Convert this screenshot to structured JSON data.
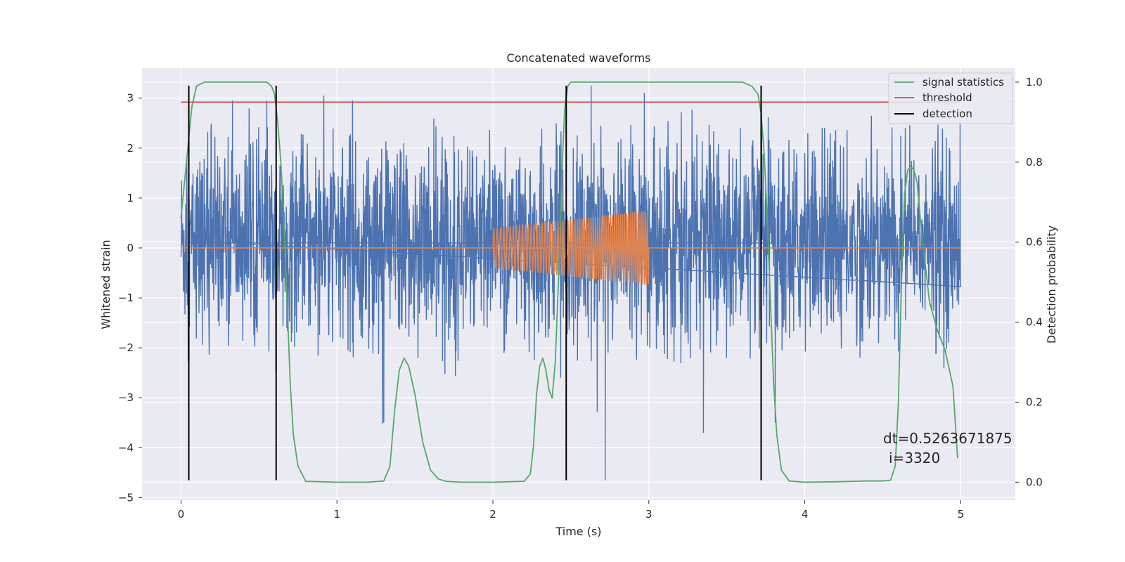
{
  "chart_data": {
    "type": "line",
    "title": "Concatenated waveforms",
    "xlabel": "Time (s)",
    "ylabel": "Whitened strain",
    "ylabel_right": "Detection probability",
    "xlim": [
      -0.25,
      5.35
    ],
    "ylim": [
      -5.05,
      3.6
    ],
    "ylim_right": [
      -0.045,
      1.035
    ],
    "x_ticks": [
      0,
      1,
      2,
      3,
      4,
      5
    ],
    "y_ticks": [
      -5,
      -4,
      -3,
      -2,
      -1,
      0,
      1,
      2,
      3
    ],
    "y_ticks_right": [
      0.0,
      0.2,
      0.4,
      0.6,
      0.8,
      1.0
    ],
    "x_tick_labels": [
      "0",
      "1",
      "2",
      "3",
      "4",
      "5"
    ],
    "y_tick_labels": [
      "−5",
      "−4",
      "−3",
      "−2",
      "−1",
      "0",
      "1",
      "2",
      "3"
    ],
    "y_tick_labels_right": [
      "0.0",
      "0.2",
      "0.4",
      "0.6",
      "0.8",
      "1.0"
    ],
    "grid": true,
    "legend_position": "top-right",
    "legend": [
      "signal statistics",
      "threshold",
      "detection"
    ],
    "colors": {
      "strain": "#4c72b0",
      "injected": "#dd8452",
      "signal_statistics": "#55a868",
      "threshold": "#c44e52",
      "detection": "#000000",
      "background": "#eaeaf2",
      "grid": "#ffffff"
    },
    "noise": {
      "x_range": [
        0.0,
        5.0
      ],
      "center": 0.1,
      "typical_peak": 2.2,
      "max_peak": 3.25,
      "min_trough": -4.65
    },
    "injection": {
      "x_range": [
        2.0,
        3.0
      ],
      "amplitude_start": 0.4,
      "amplitude_end": 0.75,
      "flat_line_value": 0.0
    },
    "series": [
      {
        "name": "signal statistics",
        "axis": "right",
        "x": [
          0.0,
          0.04,
          0.07,
          0.1,
          0.15,
          0.2,
          0.3,
          0.5,
          0.55,
          0.58,
          0.6,
          0.62,
          0.64,
          0.66,
          0.68,
          0.7,
          0.72,
          0.75,
          0.8,
          1.0,
          1.2,
          1.3,
          1.34,
          1.37,
          1.4,
          1.43,
          1.46,
          1.5,
          1.55,
          1.6,
          1.65,
          1.7,
          1.8,
          2.0,
          2.2,
          2.24,
          2.26,
          2.28,
          2.3,
          2.32,
          2.34,
          2.36,
          2.38,
          2.4,
          2.42,
          2.44,
          2.46,
          2.48,
          2.5,
          2.55,
          2.6,
          2.7,
          3.0,
          3.5,
          3.6,
          3.66,
          3.7,
          3.72,
          3.74,
          3.76,
          3.78,
          3.8,
          3.82,
          3.85,
          3.9,
          4.0,
          4.2,
          4.4,
          4.5,
          4.55,
          4.58,
          4.6,
          4.62,
          4.64,
          4.66,
          4.68,
          4.7,
          4.72,
          4.75,
          4.8,
          4.85,
          4.9,
          4.95,
          4.98
        ],
        "y": [
          0.66,
          0.82,
          0.94,
          0.99,
          1.0,
          1.0,
          1.0,
          1.0,
          1.0,
          0.99,
          0.97,
          0.9,
          0.8,
          0.65,
          0.45,
          0.25,
          0.12,
          0.04,
          0.002,
          0.0,
          0.0,
          0.003,
          0.04,
          0.18,
          0.28,
          0.31,
          0.29,
          0.22,
          0.1,
          0.03,
          0.008,
          0.002,
          0.0,
          0.0,
          0.002,
          0.02,
          0.09,
          0.22,
          0.29,
          0.31,
          0.28,
          0.23,
          0.21,
          0.3,
          0.5,
          0.75,
          0.93,
          0.99,
          1.0,
          1.0,
          1.0,
          1.0,
          1.0,
          1.0,
          1.0,
          0.99,
          0.97,
          0.92,
          0.82,
          0.65,
          0.45,
          0.25,
          0.12,
          0.03,
          0.003,
          0.0,
          0.001,
          0.003,
          0.003,
          0.005,
          0.04,
          0.2,
          0.5,
          0.72,
          0.78,
          0.79,
          0.78,
          0.75,
          0.62,
          0.45,
          0.38,
          0.33,
          0.24,
          0.06
        ]
      },
      {
        "name": "threshold",
        "axis": "right",
        "x": [
          0.0,
          5.0
        ],
        "y": [
          0.95,
          0.95
        ]
      }
    ],
    "detections": [
      0.05,
      0.61,
      2.47,
      3.72
    ],
    "annotation": {
      "line1": "dt=0.5263671875",
      "line2": "i=3320"
    }
  }
}
